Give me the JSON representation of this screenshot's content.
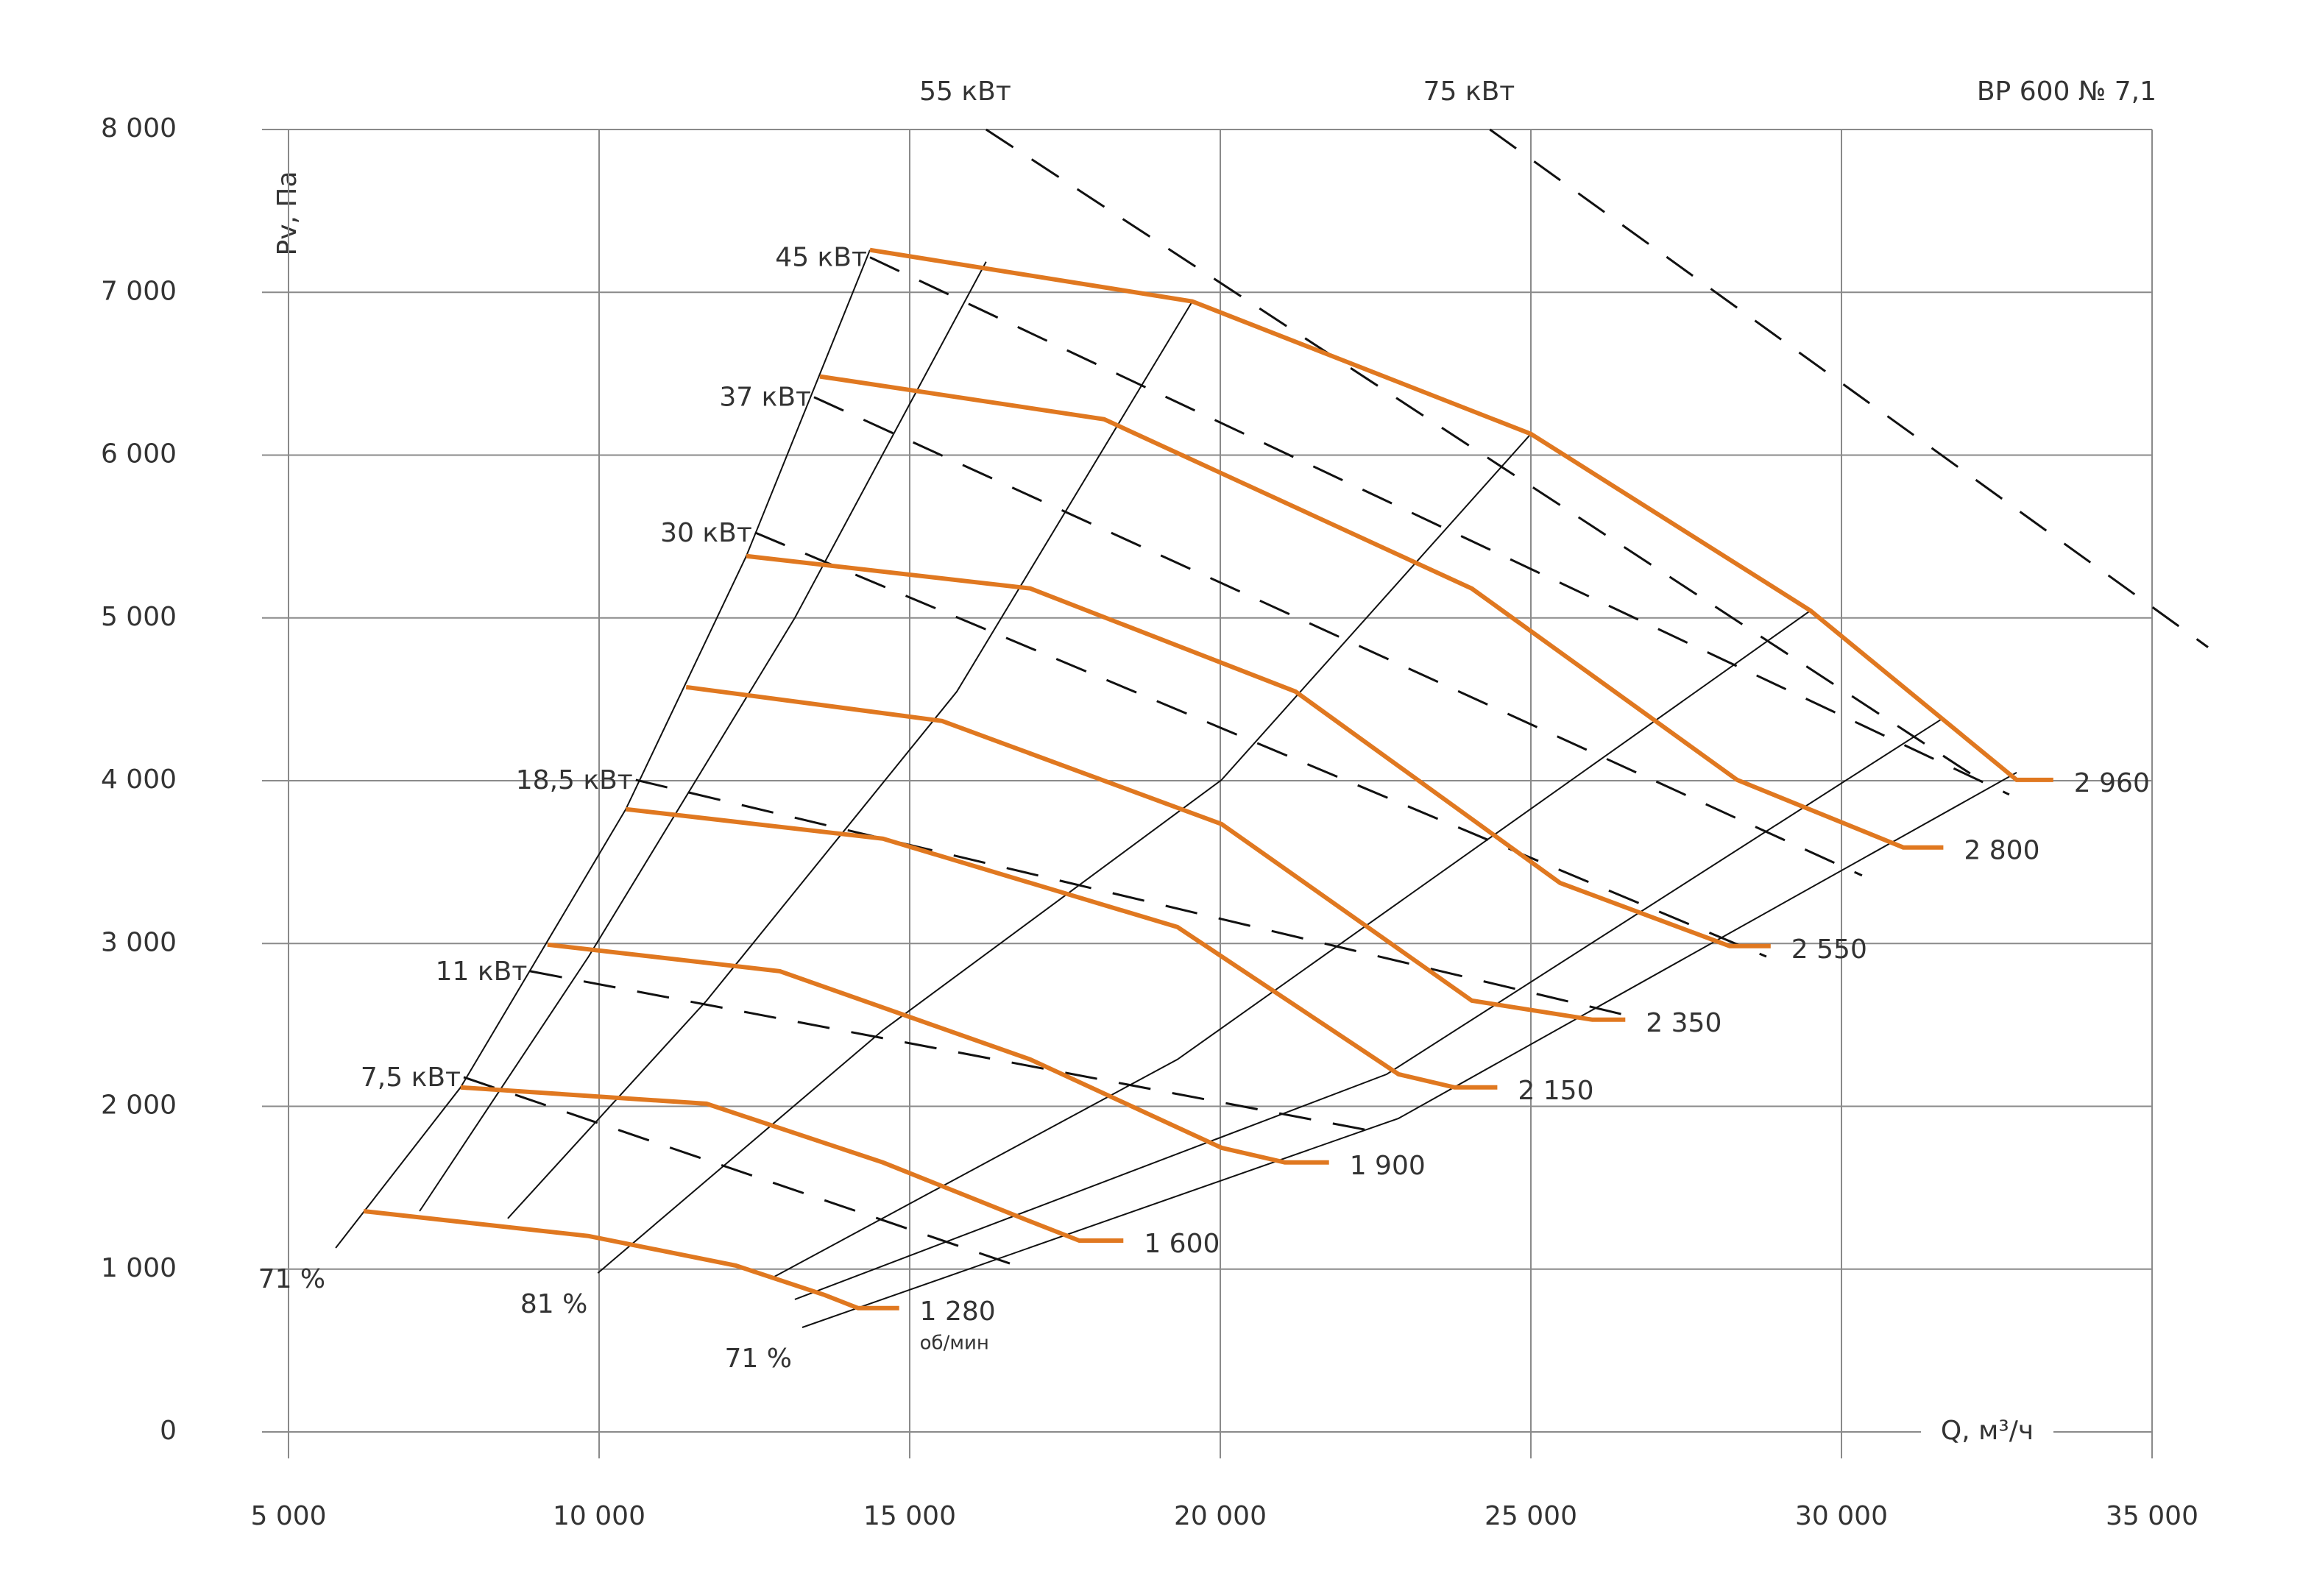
{
  "chart_data": {
    "type": "line",
    "title": "ВР 600  № 7,1",
    "x_label": "Q, м³/ч",
    "y_label": "Pv, Па",
    "xlim": [
      5000,
      35000
    ],
    "ylim": [
      0,
      8000
    ],
    "xticks": [
      {
        "value": 5000,
        "label": "5 000"
      },
      {
        "value": 10000,
        "label": "10 000"
      },
      {
        "value": 15000,
        "label": "15 000"
      },
      {
        "value": 20000,
        "label": "20 000"
      },
      {
        "value": 25000,
        "label": "25 000"
      },
      {
        "value": 30000,
        "label": "30 000"
      },
      {
        "value": 35000,
        "label": "35 000"
      }
    ],
    "yticks": [
      0,
      {
        "value": 1000,
        "label": "1 000"
      },
      {
        "value": 2000,
        "label": "2 000"
      },
      {
        "value": 3000,
        "label": "3 000"
      },
      {
        "value": 4000,
        "label": "4 000"
      },
      {
        "value": 5000,
        "label": "5 000"
      },
      {
        "value": 6000,
        "label": "6 000"
      },
      {
        "value": 7000,
        "label": "7 000"
      },
      {
        "value": 8000,
        "label": "8 000"
      }
    ],
    "grid": true,
    "speed_unit": "об/мин",
    "speed_color": "#e07820",
    "series": [
      {
        "name": "2 960",
        "x": [
          14360,
          19550,
          25000,
          29500,
          32820,
          33410
        ],
        "values": [
          7260,
          6944,
          6130,
          5045,
          4005,
          4005
        ]
      },
      {
        "name": "2 800",
        "x": [
          13555,
          18130,
          24050,
          28320,
          30995,
          31640
        ],
        "values": [
          6483,
          6220,
          5180,
          4005,
          3590,
          3590
        ]
      },
      {
        "name": "2 550",
        "x": [
          12370,
          16940,
          21210,
          25470,
          28200,
          28860
        ],
        "values": [
          5380,
          5181,
          4548,
          3372,
          2984,
          2984
        ]
      },
      {
        "name": "2 350",
        "x": [
          11400,
          15520,
          20020,
          24050,
          25990,
          26520
        ],
        "values": [
          4575,
          4367,
          3734,
          2649,
          2532,
          2532
        ]
      },
      {
        "name": "2 150",
        "x": [
          10430,
          14570,
          19310,
          22870,
          23770,
          24460
        ],
        "values": [
          3825,
          3644,
          3101,
          2197,
          2116,
          2116
        ]
      },
      {
        "name": "1 900",
        "x": [
          9170,
          12910,
          16940,
          20020,
          21040,
          21750
        ],
        "values": [
          2993,
          2830,
          2288,
          1745,
          1655,
          1655
        ]
      },
      {
        "name": "1 600",
        "x": [
          7770,
          11730,
          14570,
          16940,
          17730,
          18440
        ],
        "values": [
          2116,
          2016,
          1655,
          1293,
          1175,
          1175
        ]
      },
      {
        "name": "1 280",
        "x": [
          6210,
          9830,
          12200,
          13630,
          14170,
          14830
        ],
        "values": [
          1356,
          1203,
          1022,
          841,
          760,
          760
        ]
      }
    ],
    "efficiency_lines": [
      {
        "name": "71 %",
        "x": [
          5760,
          7770,
          10430,
          12370,
          14360
        ],
        "values": [
          1130,
          2116,
          3825,
          5380,
          7260
        ]
      },
      {
        "x": [
          7110,
          9830,
          13150,
          16230
        ],
        "values": [
          1356,
          2920,
          5000,
          7188
        ]
      },
      {
        "x": [
          8530,
          11730,
          15760,
          19550
        ],
        "values": [
          1311,
          2649,
          4548,
          6944
        ]
      },
      {
        "name": "81 %",
        "x": [
          9980,
          14570,
          20020,
          25000
        ],
        "values": [
          976,
          2468,
          4005,
          6130
        ]
      },
      {
        "x": [
          12800,
          19310,
          29500
        ],
        "values": [
          949,
          2288,
          5045
        ]
      },
      {
        "x": [
          13150,
          22680,
          31640
        ],
        "values": [
          814,
          2197,
          4385
        ]
      },
      {
        "name": "71 %",
        "x": [
          13270,
          22870,
          32820
        ],
        "values": [
          642,
          1926,
          4050
        ]
      }
    ],
    "power_lines": [
      {
        "name": "55 кВт",
        "x": [
          16230,
          32230
        ],
        "values": [
          8000,
          4005
        ]
      },
      {
        "name": "75 кВт",
        "x": [
          24340,
          35900
        ],
        "values": [
          8000,
          4820
        ]
      },
      {
        "name": "45 кВт",
        "x": [
          14360,
          32700
        ],
        "values": [
          7215,
          3915
        ]
      },
      {
        "name": "37 кВт",
        "x": [
          13460,
          30330
        ],
        "values": [
          6356,
          3418
        ]
      },
      {
        "name": "30 кВт",
        "x": [
          12510,
          28790
        ],
        "values": [
          5524,
          2920
        ]
      },
      {
        "name": "18,5 кВт",
        "x": [
          10590,
          26540
        ],
        "values": [
          4005,
          2559
        ]
      },
      {
        "name": "11 кВт",
        "x": [
          8890,
          22630
        ],
        "values": [
          2830,
          1835
        ]
      },
      {
        "name": "7,5 кВт",
        "x": [
          7820,
          16710
        ],
        "values": [
          2179,
          1022
        ]
      }
    ]
  }
}
